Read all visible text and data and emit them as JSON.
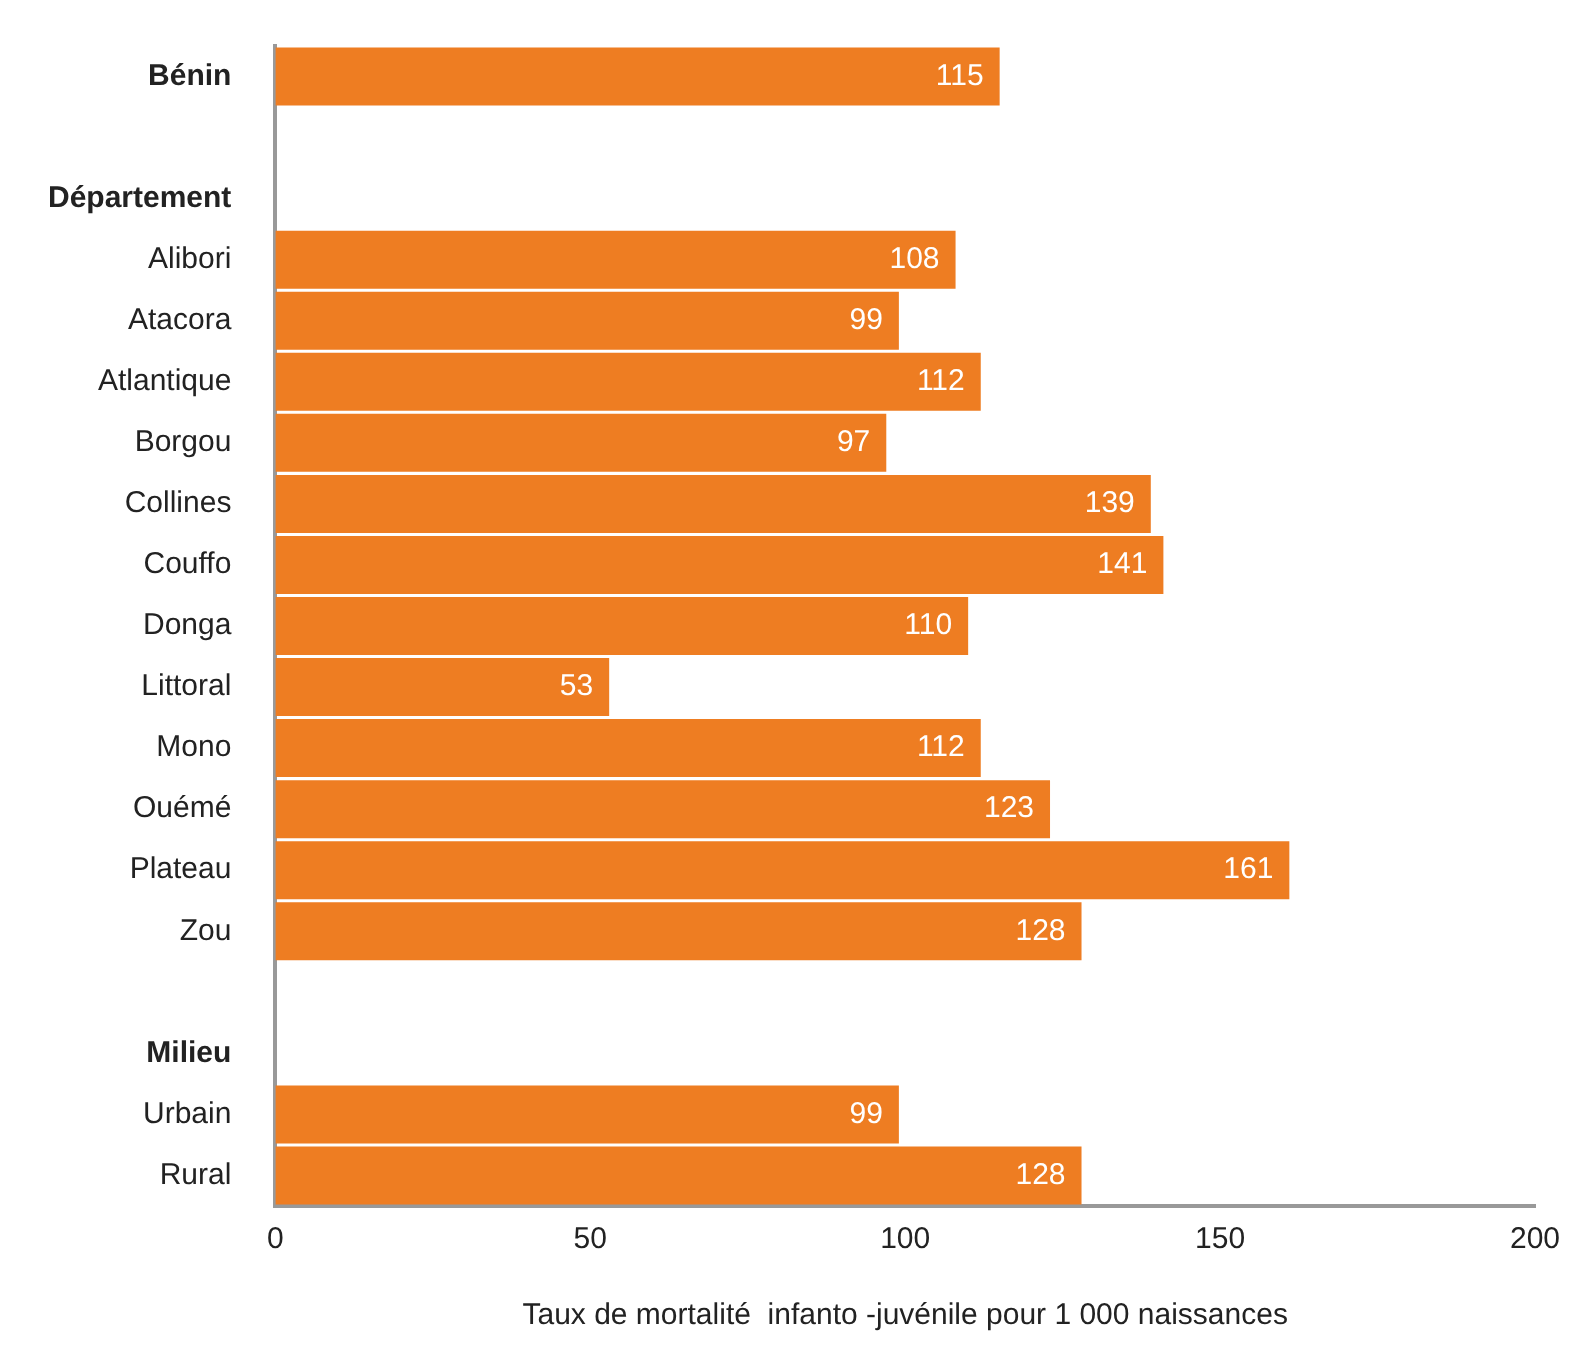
{
  "chart_data": {
    "type": "bar",
    "orientation": "horizontal",
    "xlabel": "Taux de mortalité  infanto -juvénile pour 1 000 naissances",
    "categories": [
      "Bénin",
      null,
      "Département",
      "Alibori",
      "Atacora",
      "Atlantique",
      "Borgou",
      "Collines",
      "Couffo",
      "Donga",
      "Littoral",
      "Mono",
      "Ouémé",
      "Plateau",
      "Zou",
      null,
      "Milieu",
      "Urbain",
      "Rural"
    ],
    "values": [
      115,
      null,
      null,
      108,
      99,
      112,
      97,
      139,
      141,
      110,
      53,
      112,
      123,
      161,
      128,
      null,
      null,
      99,
      128
    ],
    "color": "#ee7d22",
    "xlim": [
      0,
      200
    ],
    "xticks": [
      0,
      50,
      100,
      150,
      200
    ],
    "grid": false,
    "legend": false,
    "data_labels": true
  }
}
